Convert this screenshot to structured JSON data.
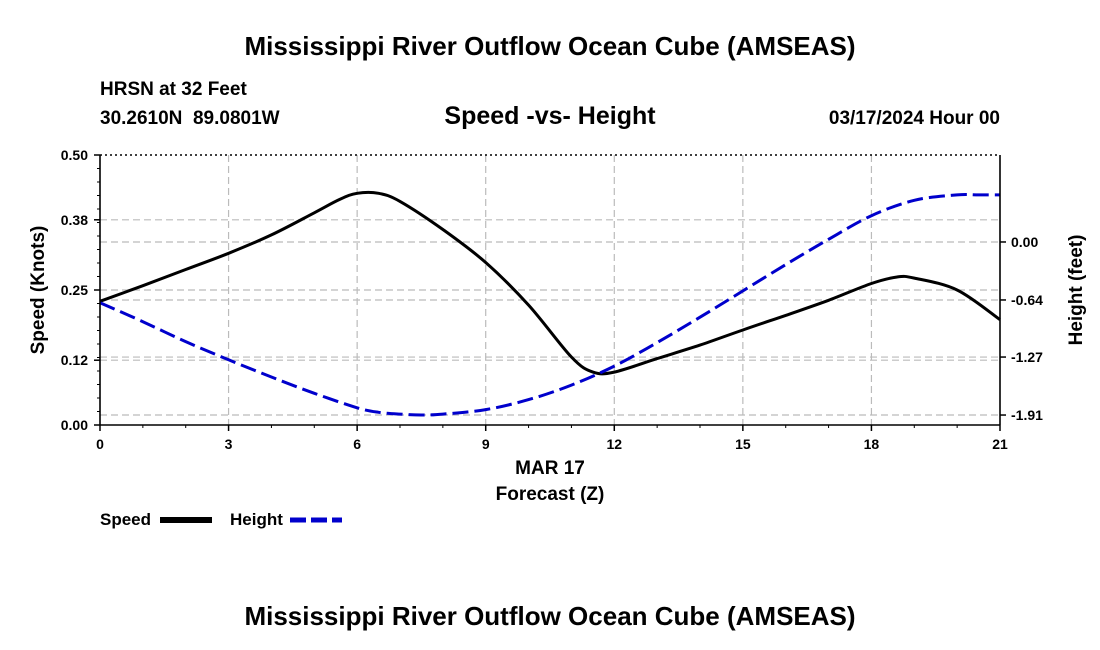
{
  "page": {
    "title_top": "Mississippi River Outflow Ocean Cube (AMSEAS)",
    "title_bottom": "Mississippi River Outflow Ocean Cube (AMSEAS)",
    "station": "HRSN at 32 Feet",
    "coords": "30.2610N  89.0801W",
    "datetime": "03/17/2024 Hour 00"
  },
  "colors": {
    "speed": "#000000",
    "height": "#0000cc",
    "grid": "#bbbbbb"
  },
  "chart_data": {
    "type": "line",
    "title": "Speed -vs- Height",
    "date_label": "MAR 17",
    "xlabel": "Forecast (Z)",
    "ylabel": "Speed (Knots)",
    "y2label": "Height (feet)",
    "xlim": [
      0,
      21
    ],
    "ylim": [
      0,
      0.5
    ],
    "y2lim": [
      -2.02,
      0.96
    ],
    "x_ticks": [
      0,
      3,
      6,
      9,
      12,
      15,
      18,
      21
    ],
    "y_ticks": [
      "0.00",
      "0.12",
      "0.25",
      "0.38",
      "0.50"
    ],
    "y2_ticks": [
      "0.00",
      "-0.64",
      "-1.27",
      "-1.91"
    ],
    "grid": true,
    "legend_position": "bottom-left",
    "series": [
      {
        "name": "Speed",
        "axis": "left",
        "style": "solid",
        "x": [
          0,
          1,
          2,
          3,
          4,
          5,
          5.6,
          6,
          6.5,
          7,
          8,
          9,
          10,
          11,
          11.5,
          12,
          13,
          14,
          15,
          16,
          17,
          18,
          18.6,
          19,
          20,
          21
        ],
        "values": [
          0.229,
          0.258,
          0.288,
          0.318,
          0.352,
          0.393,
          0.418,
          0.429,
          0.429,
          0.414,
          0.362,
          0.301,
          0.222,
          0.126,
          0.098,
          0.098,
          0.123,
          0.148,
          0.176,
          0.203,
          0.231,
          0.262,
          0.274,
          0.272,
          0.25,
          0.195
        ]
      },
      {
        "name": "Height",
        "axis": "right",
        "style": "dashed",
        "x": [
          0,
          1,
          2,
          3,
          4,
          5,
          6,
          6.5,
          7,
          7.5,
          8,
          9,
          10,
          11,
          12,
          13,
          14,
          15,
          16,
          17,
          18,
          19,
          20,
          20.5,
          21
        ],
        "values": [
          -0.67,
          -0.88,
          -1.1,
          -1.3,
          -1.49,
          -1.67,
          -1.83,
          -1.88,
          -1.9,
          -1.91,
          -1.9,
          -1.85,
          -1.74,
          -1.58,
          -1.37,
          -1.11,
          -0.83,
          -0.54,
          -0.25,
          0.03,
          0.29,
          0.46,
          0.52,
          0.52,
          0.52
        ]
      }
    ]
  }
}
